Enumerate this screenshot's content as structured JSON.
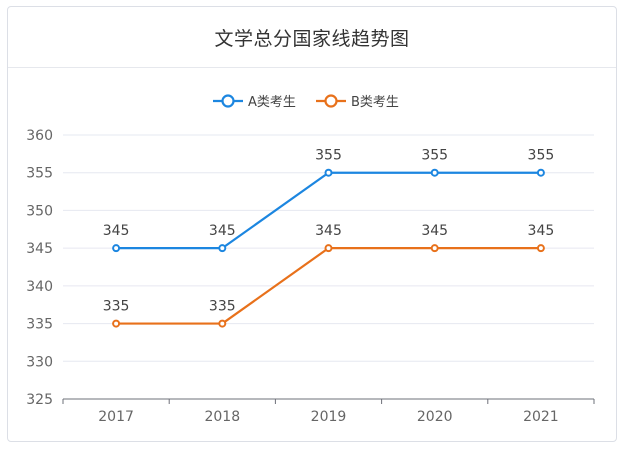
{
  "chart_data": {
    "type": "line",
    "title": "文学总分国家线趋势图",
    "categories": [
      "2017",
      "2018",
      "2019",
      "2020",
      "2021"
    ],
    "series": [
      {
        "name": "A类考生",
        "values": [
          345,
          345,
          355,
          355,
          355
        ],
        "color": "#1c86e0"
      },
      {
        "name": "B类考生",
        "values": [
          335,
          335,
          345,
          345,
          345
        ],
        "color": "#e8711b"
      }
    ],
    "ylim": [
      325,
      360
    ],
    "yticks": [
      "325",
      "330",
      "335",
      "340",
      "345",
      "350",
      "355",
      "360"
    ],
    "grid": true,
    "legend_position": "top-center",
    "data_labels": true
  }
}
